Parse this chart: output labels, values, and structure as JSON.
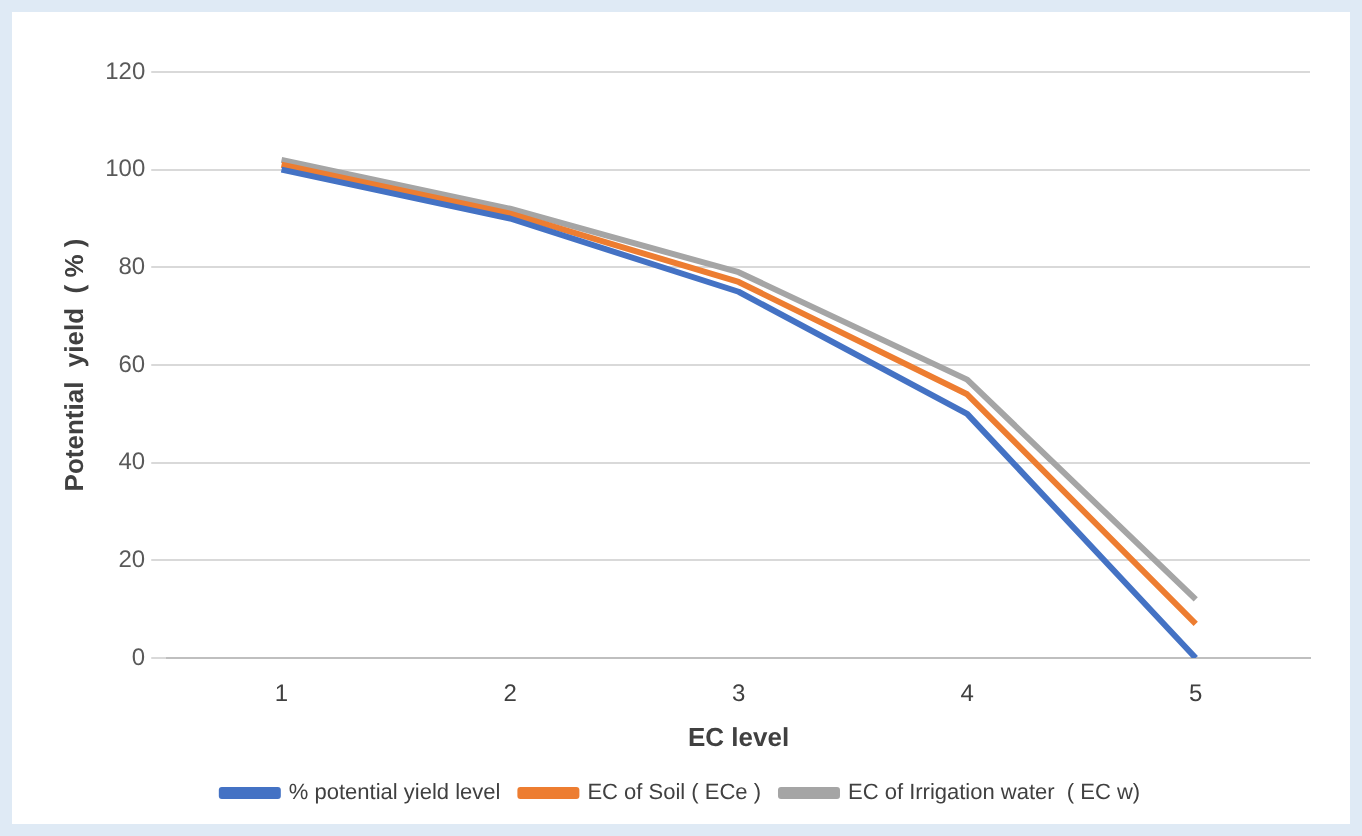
{
  "chart_data": {
    "type": "line",
    "xlabel": "EC level",
    "ylabel": "Potential  yield  ( % )",
    "categories": [
      "1",
      "2",
      "3",
      "4",
      "5"
    ],
    "series": [
      {
        "name": "% potential yield level",
        "color": "#4472c4",
        "values": [
          100,
          90,
          75,
          50,
          0
        ]
      },
      {
        "name": "EC of Soil ( ECe )",
        "color": "#ed7d31",
        "values": [
          101,
          91,
          77,
          54,
          7
        ]
      },
      {
        "name": "EC of Irrigation water  ( EC w)",
        "color": "#a5a5a5",
        "values": [
          102,
          92,
          79,
          57,
          12
        ]
      }
    ],
    "ylim": [
      0,
      120
    ],
    "yticks": [
      0,
      20,
      40,
      60,
      80,
      100,
      120
    ],
    "grid": "y",
    "legend": "bottom",
    "marker": "none",
    "line_style": "solid"
  }
}
